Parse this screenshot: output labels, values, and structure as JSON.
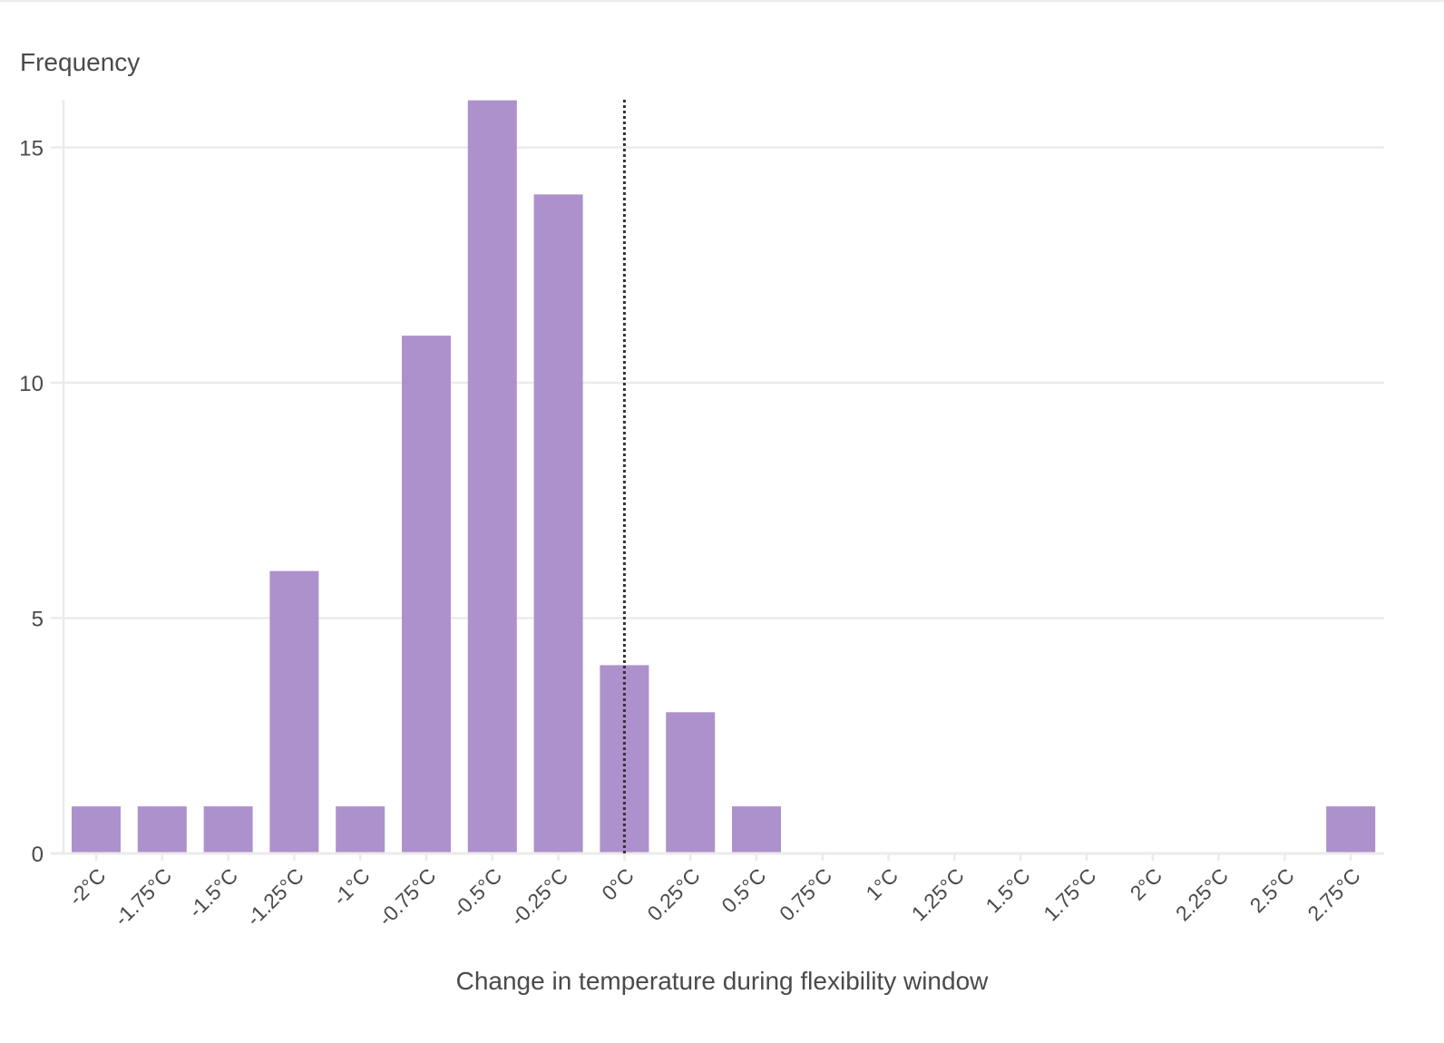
{
  "chart_data": {
    "type": "bar",
    "title": "",
    "ylabel": "Frequency",
    "xlabel": "Change in temperature during flexibility window",
    "categories": [
      "-2°C",
      "-1.75°C",
      "-1.5°C",
      "-1.25°C",
      "-1°C",
      "-0.75°C",
      "-0.5°C",
      "-0.25°C",
      "0°C",
      "0.25°C",
      "0.5°C",
      "0.75°C",
      "1°C",
      "1.25°C",
      "1.5°C",
      "1.75°C",
      "2°C",
      "2.25°C",
      "2.5°C",
      "2.75°C"
    ],
    "values": [
      1,
      1,
      1,
      6,
      1,
      11,
      16,
      14,
      4,
      3,
      1,
      0,
      0,
      0,
      0,
      0,
      0,
      0,
      0,
      1
    ],
    "x_values": [
      -2,
      -1.75,
      -1.5,
      -1.25,
      -1,
      -0.75,
      -0.5,
      -0.25,
      0,
      0.25,
      0.5,
      0.75,
      1,
      1.25,
      1.5,
      1.75,
      2,
      2.25,
      2.5,
      2.75
    ],
    "y_ticks": [
      0,
      5,
      10,
      15
    ],
    "ylim": [
      0,
      16
    ],
    "reference_line": {
      "x": 0,
      "style": "dotted"
    },
    "grid": true,
    "bar_color": "#a98bc9",
    "colors": {
      "gridline": "#ebebeb",
      "axis_text": "#4a4a4a",
      "reference_line": "#333333"
    }
  }
}
